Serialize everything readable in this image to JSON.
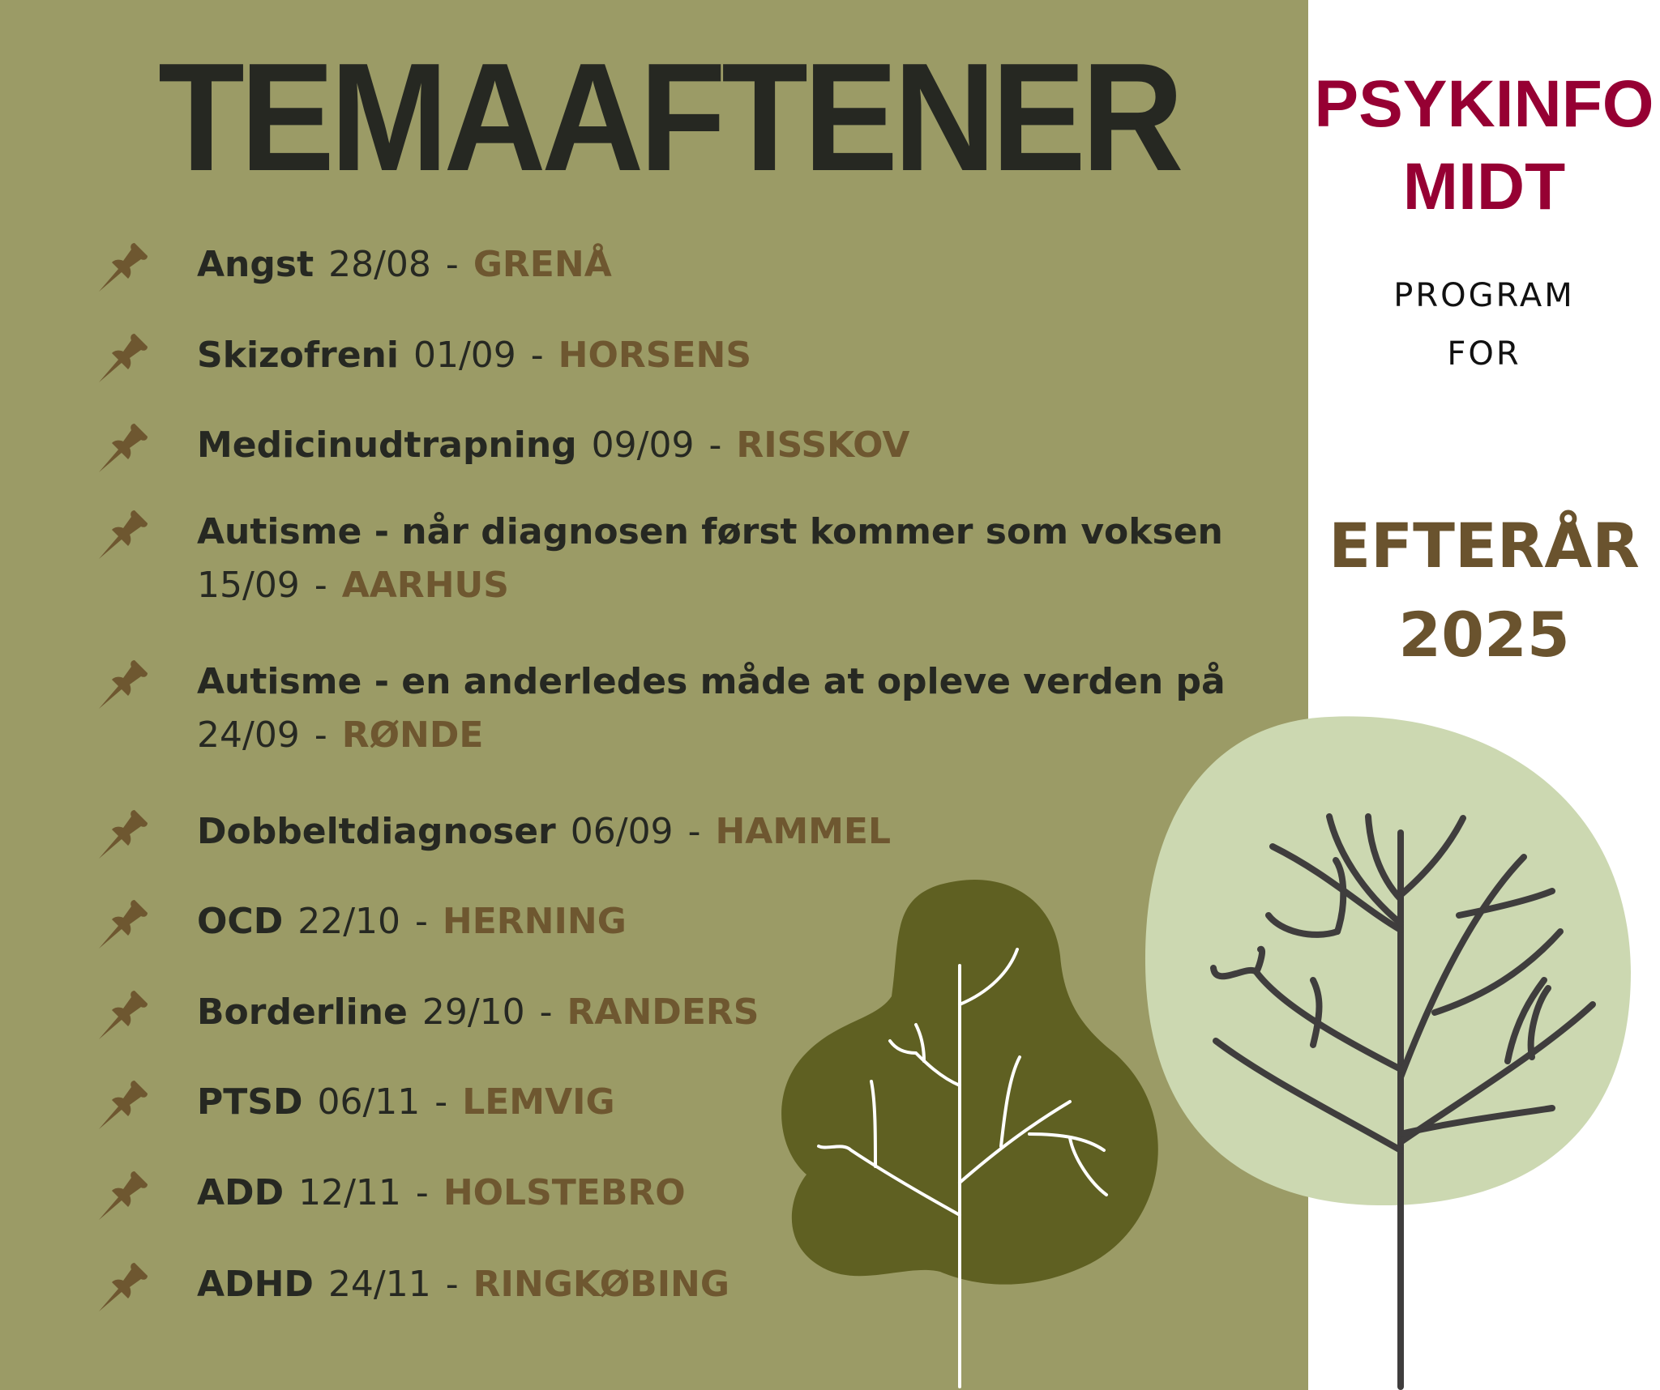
{
  "title": "TEMAAFTENER",
  "organization": {
    "line1": "PSYKINFO",
    "line2": "MIDT"
  },
  "program": {
    "line1": "PROGRAM",
    "line2": "FOR"
  },
  "season": {
    "line1": "EFTERÅR",
    "line2": "2025"
  },
  "colors": {
    "panel": "#9b9b66",
    "text_dark": "#262822",
    "city": "#6e5730",
    "brand": "#960033",
    "season": "#6a532e",
    "tree_light": "#ccd8b1",
    "tree_dark": "#5f6022"
  },
  "icon": "pushpin-icon",
  "events": [
    {
      "topic": "Angst",
      "date": "28/08",
      "city": "GRENÅ"
    },
    {
      "topic": "Skizofreni",
      "date": "01/09",
      "city": "HORSENS"
    },
    {
      "topic": "Medicinudtrapning",
      "date": "09/09",
      "city": "RISSKOV"
    },
    {
      "topic": "Autisme - når diagnosen først kommer som voksen",
      "date": "15/09",
      "city": "AARHUS"
    },
    {
      "topic": "Autisme - en anderledes måde at opleve verden på",
      "date": "24/09",
      "city": "RØNDE"
    },
    {
      "topic": "Dobbeltdiagnoser",
      "date": "06/09",
      "city": "HAMMEL"
    },
    {
      "topic": "OCD",
      "date": "22/10",
      "city": "HERNING"
    },
    {
      "topic": "Borderline",
      "date": "29/10",
      "city": "RANDERS"
    },
    {
      "topic": "PTSD",
      "date": "06/11",
      "city": "LEMVIG"
    },
    {
      "topic": "ADD",
      "date": "12/11",
      "city": "HOLSTEBRO"
    },
    {
      "topic": "ADHD",
      "date": "24/11",
      "city": "RINGKØBING"
    }
  ]
}
